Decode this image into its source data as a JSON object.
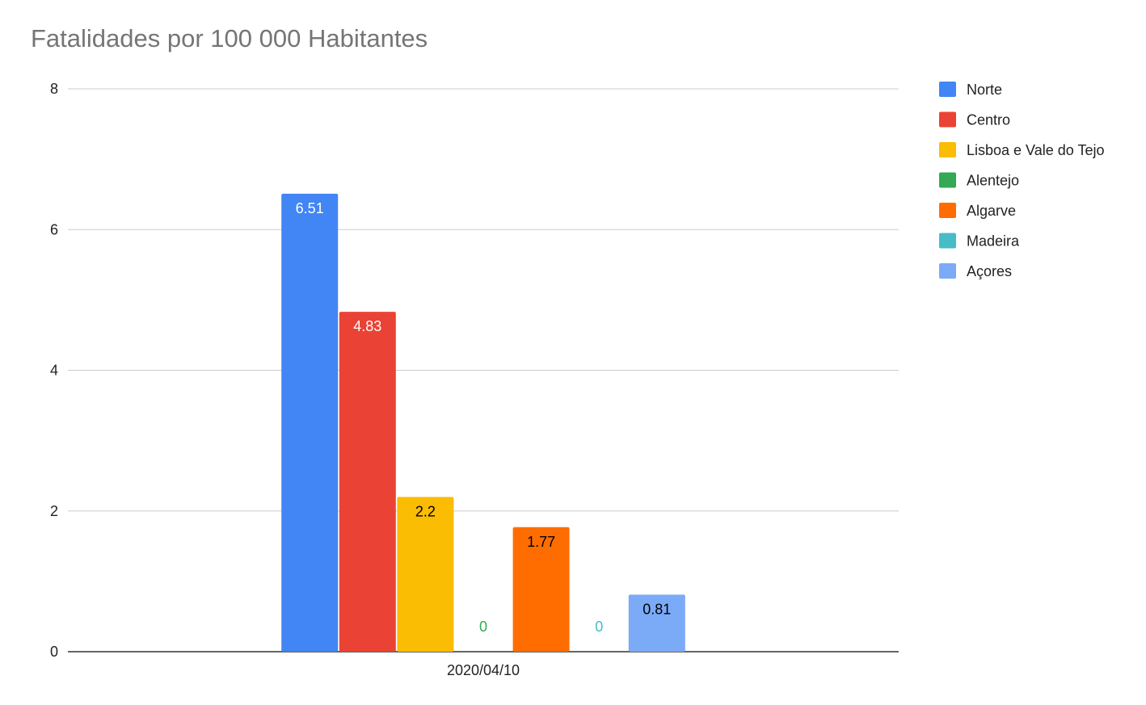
{
  "chart_data": {
    "type": "bar",
    "title": "Fatalidades por 100 000 Habitantes",
    "categories": [
      "2020/04/10"
    ],
    "series": [
      {
        "name": "Norte",
        "values": [
          6.51
        ],
        "color": "#4285F4",
        "label": "6.51",
        "label_color": "#ffffff"
      },
      {
        "name": "Centro",
        "values": [
          4.83
        ],
        "color": "#EA4335",
        "label": "4.83",
        "label_color": "#ffffff"
      },
      {
        "name": "Lisboa e Vale do Tejo",
        "values": [
          2.2
        ],
        "color": "#FBBC04",
        "label": "2.2",
        "label_color": "#000000"
      },
      {
        "name": "Alentejo",
        "values": [
          0
        ],
        "color": "#34A853",
        "label": "0",
        "label_color": "#34A853"
      },
      {
        "name": "Algarve",
        "values": [
          1.77
        ],
        "color": "#FF6D01",
        "label": "1.77",
        "label_color": "#000000"
      },
      {
        "name": "Madeira",
        "values": [
          0
        ],
        "color": "#46BDC6",
        "label": "0",
        "label_color": "#46BDC6"
      },
      {
        "name": "Açores",
        "values": [
          0.81
        ],
        "color": "#7BAAF7",
        "label": "0.81",
        "label_color": "#000000"
      }
    ],
    "ylim": [
      0,
      8
    ],
    "yticks": [
      "0",
      "2",
      "4",
      "6",
      "8"
    ],
    "grid": true,
    "legend_position": "right"
  }
}
